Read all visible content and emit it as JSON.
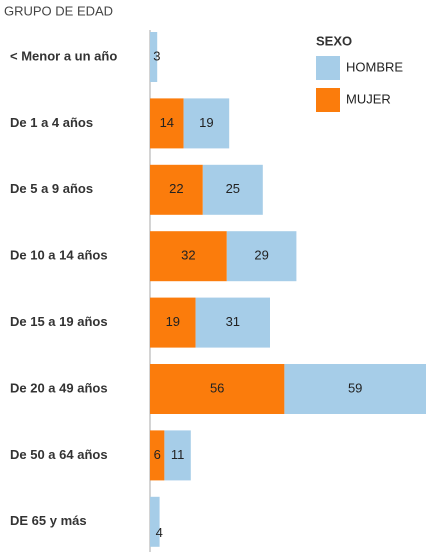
{
  "chart_data": {
    "type": "stacked_bar_horizontal",
    "y_axis_label": "GRUPO DE EDAD",
    "legend_title": "SEXO",
    "categories": [
      "< Menor a un año",
      "De 1 a 4 años",
      "De 5 a 9 años",
      "De 10 a 14 años",
      "De 15 a 19 años",
      "De 20 a 49 años",
      "De 50 a 64 años",
      "DE 65 y más"
    ],
    "series": [
      {
        "name": "HOMBRE",
        "color": "#a6cde8",
        "values": [
          3,
          19,
          25,
          29,
          31,
          59,
          11,
          4
        ]
      },
      {
        "name": "MUJER",
        "color": "#fb7c0c",
        "values": [
          null,
          14,
          22,
          32,
          19,
          56,
          6,
          null
        ]
      }
    ],
    "xlim": [
      0,
      115
    ],
    "legend_position": "top-right"
  }
}
